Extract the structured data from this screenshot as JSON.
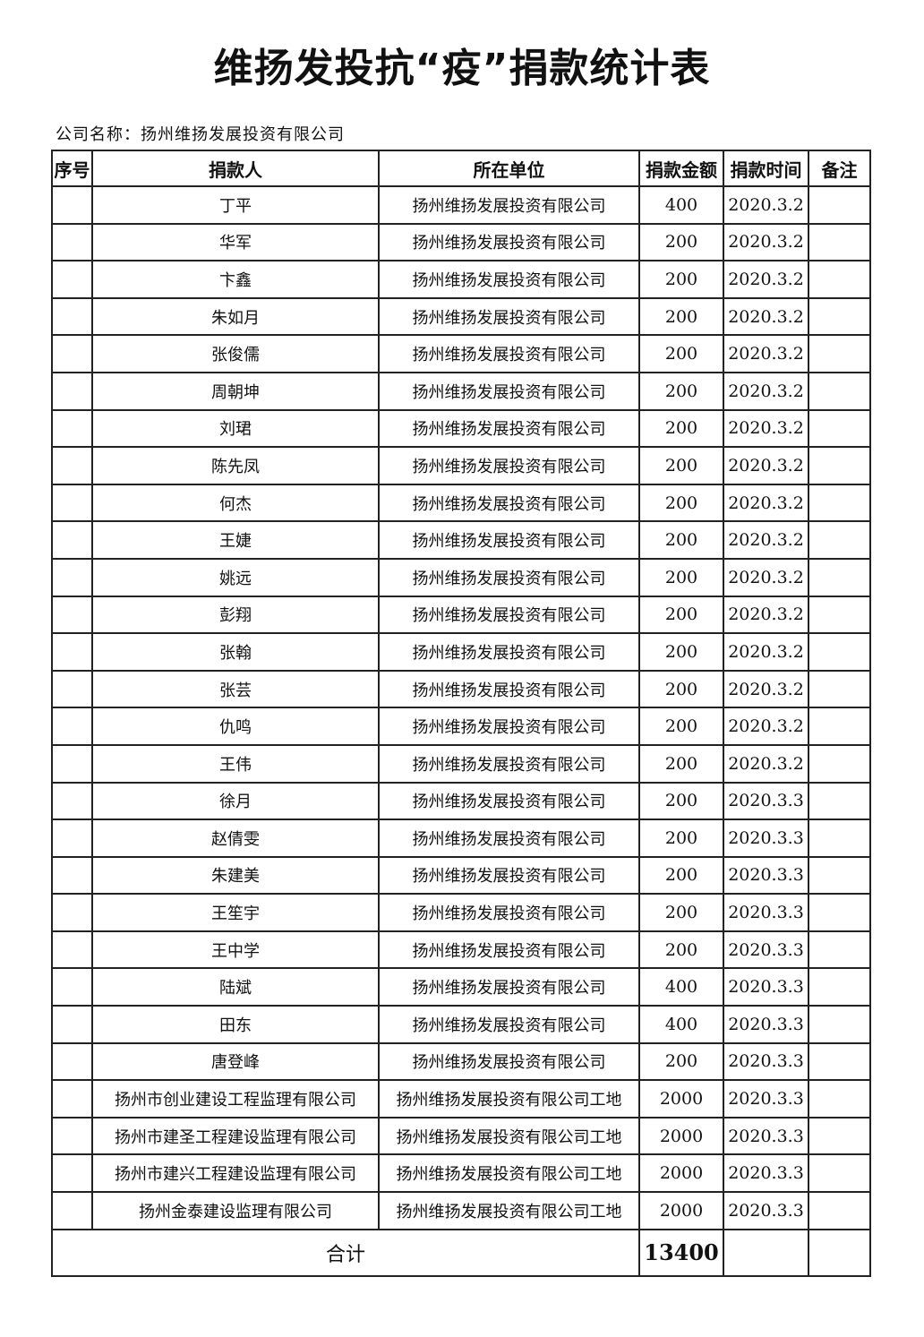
{
  "title": "维扬发投抗“疫”捐款统计表",
  "company_label": "公司名称：扬州维扬发展投资有限公司",
  "headers": [
    "序号",
    "捐款人",
    "所在单位",
    "捐款金额",
    "捐款时间",
    "备注"
  ],
  "rows": [
    {
      "no": "",
      "donor": "丁平",
      "unit": "扬州维扬发展投资有限公司",
      "amount": "400",
      "date": "2020.3.2",
      "note": ""
    },
    {
      "no": "",
      "donor": "华军",
      "unit": "扬州维扬发展投资有限公司",
      "amount": "200",
      "date": "2020.3.2",
      "note": ""
    },
    {
      "no": "",
      "donor": "卞鑫",
      "unit": "扬州维扬发展投资有限公司",
      "amount": "200",
      "date": "2020.3.2",
      "note": ""
    },
    {
      "no": "",
      "donor": "朱如月",
      "unit": "扬州维扬发展投资有限公司",
      "amount": "200",
      "date": "2020.3.2",
      "note": ""
    },
    {
      "no": "",
      "donor": "张俊儒",
      "unit": "扬州维扬发展投资有限公司",
      "amount": "200",
      "date": "2020.3.2",
      "note": ""
    },
    {
      "no": "",
      "donor": "周朝坤",
      "unit": "扬州维扬发展投资有限公司",
      "amount": "200",
      "date": "2020.3.2",
      "note": ""
    },
    {
      "no": "",
      "donor": "刘珺",
      "unit": "扬州维扬发展投资有限公司",
      "amount": "200",
      "date": "2020.3.2",
      "note": ""
    },
    {
      "no": "",
      "donor": "陈先凤",
      "unit": "扬州维扬发展投资有限公司",
      "amount": "200",
      "date": "2020.3.2",
      "note": ""
    },
    {
      "no": "",
      "donor": "何杰",
      "unit": "扬州维扬发展投资有限公司",
      "amount": "200",
      "date": "2020.3.2",
      "note": ""
    },
    {
      "no": "",
      "donor": "王婕",
      "unit": "扬州维扬发展投资有限公司",
      "amount": "200",
      "date": "2020.3.2",
      "note": ""
    },
    {
      "no": "",
      "donor": "姚远",
      "unit": "扬州维扬发展投资有限公司",
      "amount": "200",
      "date": "2020.3.2",
      "note": ""
    },
    {
      "no": "",
      "donor": "彭翔",
      "unit": "扬州维扬发展投资有限公司",
      "amount": "200",
      "date": "2020.3.2",
      "note": ""
    },
    {
      "no": "",
      "donor": "张翰",
      "unit": "扬州维扬发展投资有限公司",
      "amount": "200",
      "date": "2020.3.2",
      "note": ""
    },
    {
      "no": "",
      "donor": "张芸",
      "unit": "扬州维扬发展投资有限公司",
      "amount": "200",
      "date": "2020.3.2",
      "note": ""
    },
    {
      "no": "",
      "donor": "仇鸣",
      "unit": "扬州维扬发展投资有限公司",
      "amount": "200",
      "date": "2020.3.2",
      "note": ""
    },
    {
      "no": "",
      "donor": "王伟",
      "unit": "扬州维扬发展投资有限公司",
      "amount": "200",
      "date": "2020.3.2",
      "note": ""
    },
    {
      "no": "",
      "donor": "徐月",
      "unit": "扬州维扬发展投资有限公司",
      "amount": "200",
      "date": "2020.3.3",
      "note": ""
    },
    {
      "no": "",
      "donor": "赵倩雯",
      "unit": "扬州维扬发展投资有限公司",
      "amount": "200",
      "date": "2020.3.3",
      "note": ""
    },
    {
      "no": "",
      "donor": "朱建美",
      "unit": "扬州维扬发展投资有限公司",
      "amount": "200",
      "date": "2020.3.3",
      "note": ""
    },
    {
      "no": "",
      "donor": "王笙宇",
      "unit": "扬州维扬发展投资有限公司",
      "amount": "200",
      "date": "2020.3.3",
      "note": ""
    },
    {
      "no": "",
      "donor": "王中学",
      "unit": "扬州维扬发展投资有限公司",
      "amount": "200",
      "date": "2020.3.3",
      "note": ""
    },
    {
      "no": "",
      "donor": "陆斌",
      "unit": "扬州维扬发展投资有限公司",
      "amount": "400",
      "date": "2020.3.3",
      "note": ""
    },
    {
      "no": "",
      "donor": "田东",
      "unit": "扬州维扬发展投资有限公司",
      "amount": "400",
      "date": "2020.3.3",
      "note": ""
    },
    {
      "no": "",
      "donor": "唐登峰",
      "unit": "扬州维扬发展投资有限公司",
      "amount": "200",
      "date": "2020.3.3",
      "note": ""
    },
    {
      "no": "",
      "donor": "扬州市创业建设工程监理有限公司",
      "unit": "扬州维扬发展投资有限公司工地",
      "amount": "2000",
      "date": "2020.3.3",
      "note": ""
    },
    {
      "no": "",
      "donor": "扬州市建圣工程建设监理有限公司",
      "unit": "扬州维扬发展投资有限公司工地",
      "amount": "2000",
      "date": "2020.3.3",
      "note": ""
    },
    {
      "no": "",
      "donor": "扬州市建兴工程建设监理有限公司",
      "unit": "扬州维扬发展投资有限公司工地",
      "amount": "2000",
      "date": "2020.3.3",
      "note": ""
    },
    {
      "no": "",
      "donor": "扬州金泰建设监理有限公司",
      "unit": "扬州维扬发展投资有限公司工地",
      "amount": "2000",
      "date": "2020.3.3",
      "note": ""
    }
  ],
  "total": {
    "label": "合计",
    "amount": "13400"
  }
}
